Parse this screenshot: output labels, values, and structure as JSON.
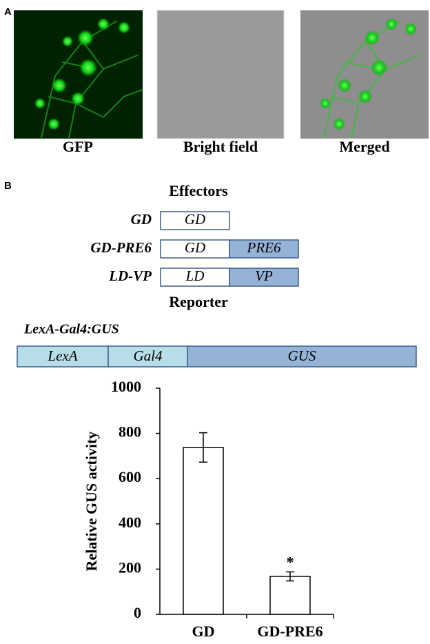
{
  "panel_a": {
    "label": "A",
    "images": [
      {
        "label": "GFP"
      },
      {
        "label": "Bright field"
      },
      {
        "label": "Merged"
      }
    ]
  },
  "panel_b": {
    "label": "B",
    "effectors_title": "Effectors",
    "effectors": [
      {
        "name": "GD",
        "parts": [
          "GD"
        ]
      },
      {
        "name": "GD-PRE6",
        "parts": [
          "GD",
          "PRE6"
        ]
      },
      {
        "name": "LD-VP",
        "parts": [
          "LD",
          "VP"
        ]
      }
    ],
    "reporter_title": "Reporter",
    "reporter_name": "LexA-Gal4:GUS",
    "reporter_parts": [
      "LexA",
      "Gal4",
      "GUS"
    ]
  },
  "chart_data": {
    "type": "bar",
    "y_label": "Relative GUS activity",
    "categories": [
      "GD",
      "GD-PRE6"
    ],
    "values": [
      738,
      168
    ],
    "errors": [
      65,
      20
    ],
    "markers": [
      null,
      "*"
    ],
    "color": "#ffffff",
    "ylim": [
      0,
      1000
    ],
    "yticks": [
      0,
      200,
      400,
      600,
      800,
      1000
    ]
  }
}
